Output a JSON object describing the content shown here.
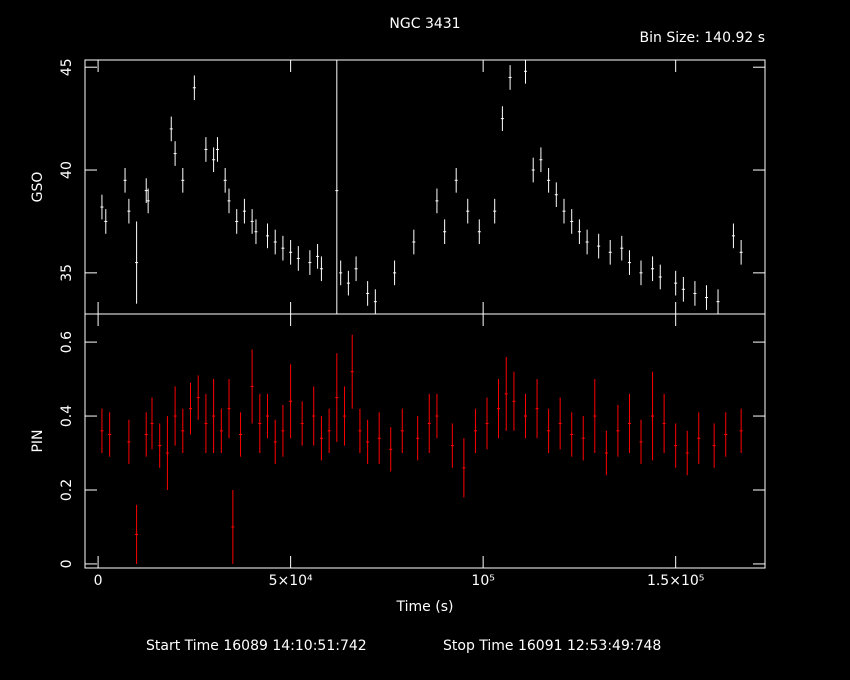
{
  "chart_data": [
    {
      "type": "scatter",
      "title": "NGC 3431",
      "subtitle": "Bin Size: 140.92 s",
      "ylabel": "GSO",
      "color": "#ffffff",
      "x": [
        1000,
        2000,
        7000,
        8000,
        10000,
        12500,
        13000,
        19000,
        20000,
        22000,
        25000,
        28000,
        30000,
        31000,
        33000,
        34000,
        36000,
        38000,
        40000,
        41000,
        44000,
        46000,
        48000,
        50000,
        52000,
        55000,
        57000,
        58000,
        62000,
        63000,
        65000,
        67000,
        70000,
        72000,
        77000,
        82000,
        88000,
        90000,
        93000,
        96000,
        99000,
        103000,
        105000,
        107000,
        111000,
        113000,
        115000,
        117000,
        119000,
        121000,
        123000,
        125000,
        127000,
        130000,
        133000,
        136000,
        138000,
        141000,
        144000,
        146000,
        150000,
        152000,
        155000,
        158000,
        161000,
        165000,
        167000
      ],
      "values": [
        38.2,
        37.5,
        39.5,
        38.0,
        35.5,
        39.0,
        38.5,
        42.0,
        40.8,
        39.5,
        44.0,
        41.0,
        40.5,
        41.0,
        39.5,
        38.5,
        37.5,
        38.0,
        37.5,
        37.0,
        36.8,
        36.5,
        36.2,
        36.0,
        35.7,
        35.5,
        35.8,
        35.2,
        39.0,
        35.0,
        34.5,
        35.2,
        34.0,
        33.6,
        35.0,
        36.5,
        38.5,
        37.0,
        39.5,
        38.0,
        37.0,
        38.0,
        42.5,
        44.5,
        44.8,
        40.0,
        40.5,
        39.5,
        38.8,
        38.0,
        37.5,
        37.0,
        36.5,
        36.3,
        36.0,
        36.2,
        35.5,
        35.0,
        35.2,
        34.8,
        34.5,
        34.2,
        34.0,
        33.8,
        33.6,
        36.8,
        36.0
      ],
      "errors": [
        0.6,
        0.6,
        0.6,
        0.6,
        2,
        0.6,
        0.6,
        0.6,
        0.6,
        0.6,
        0.6,
        0.6,
        0.6,
        0.6,
        0.6,
        0.6,
        0.6,
        0.6,
        0.6,
        0.6,
        0.6,
        0.6,
        0.6,
        0.6,
        0.6,
        0.6,
        0.6,
        0.6,
        7,
        0.6,
        0.6,
        0.6,
        0.6,
        0.6,
        0.6,
        0.6,
        0.6,
        0.6,
        0.6,
        0.6,
        0.6,
        0.6,
        0.6,
        0.6,
        0.6,
        0.6,
        0.6,
        0.6,
        0.6,
        0.6,
        0.6,
        0.6,
        0.6,
        0.6,
        0.6,
        0.6,
        0.6,
        0.6,
        0.6,
        0.6,
        0.6,
        0.6,
        0.6,
        0.6,
        0.6,
        0.6,
        0.6
      ],
      "xlim": [
        -3400,
        173200
      ],
      "xticks": [
        0,
        50000,
        100000,
        150000
      ],
      "ylim": [
        33,
        45.35
      ],
      "yticks": [
        35,
        40,
        45
      ]
    },
    {
      "type": "scatter",
      "ylabel": "PIN",
      "xlabel": "Time (s)",
      "color": "#ff0000",
      "footer": [
        "Start Time 16089 14:10:51:742",
        "Stop Time 16091 12:53:49:748"
      ],
      "x": [
        1000,
        3000,
        8000,
        10000,
        12500,
        14000,
        16000,
        18000,
        20000,
        22000,
        24000,
        26000,
        28000,
        30000,
        32000,
        34000,
        35000,
        37000,
        40000,
        42000,
        44000,
        46000,
        48000,
        50000,
        53000,
        56000,
        58000,
        60000,
        62000,
        64000,
        66000,
        68000,
        70000,
        73000,
        76000,
        79000,
        83000,
        86000,
        88000,
        92000,
        95000,
        98000,
        101000,
        104000,
        106000,
        108000,
        111000,
        114000,
        117000,
        120000,
        123000,
        126000,
        129000,
        132000,
        135000,
        138000,
        141000,
        144000,
        147000,
        150000,
        153000,
        156000,
        160000,
        163000,
        167000
      ],
      "values": [
        0.36,
        0.35,
        0.33,
        0.08,
        0.35,
        0.38,
        0.32,
        0.3,
        0.4,
        0.36,
        0.42,
        0.45,
        0.38,
        0.4,
        0.36,
        0.42,
        0.1,
        0.35,
        0.48,
        0.38,
        0.4,
        0.33,
        0.36,
        0.44,
        0.38,
        0.4,
        0.34,
        0.36,
        0.45,
        0.4,
        0.52,
        0.36,
        0.33,
        0.34,
        0.31,
        0.36,
        0.34,
        0.38,
        0.4,
        0.32,
        0.26,
        0.36,
        0.38,
        0.42,
        0.46,
        0.44,
        0.4,
        0.42,
        0.36,
        0.38,
        0.35,
        0.34,
        0.4,
        0.3,
        0.36,
        0.38,
        0.33,
        0.4,
        0.38,
        0.32,
        0.3,
        0.34,
        0.32,
        0.35,
        0.36
      ],
      "errors": [
        0.06,
        0.06,
        0.06,
        0.08,
        0.06,
        0.07,
        0.06,
        0.1,
        0.08,
        0.06,
        0.07,
        0.06,
        0.08,
        0.1,
        0.06,
        0.08,
        0.1,
        0.06,
        0.1,
        0.08,
        0.06,
        0.06,
        0.07,
        0.1,
        0.06,
        0.08,
        0.06,
        0.06,
        0.12,
        0.08,
        0.1,
        0.06,
        0.06,
        0.07,
        0.06,
        0.06,
        0.06,
        0.08,
        0.06,
        0.06,
        0.08,
        0.06,
        0.07,
        0.08,
        0.1,
        0.08,
        0.06,
        0.08,
        0.06,
        0.07,
        0.06,
        0.06,
        0.1,
        0.06,
        0.07,
        0.08,
        0.06,
        0.12,
        0.08,
        0.06,
        0.06,
        0.07,
        0.06,
        0.06,
        0.06
      ],
      "xlim": [
        -3400,
        173200
      ],
      "xticks": [
        {
          "value": 0,
          "label": "0"
        },
        {
          "value": 50000,
          "label": "5×10⁴"
        },
        {
          "value": 100000,
          "label": "10⁵"
        },
        {
          "value": 150000,
          "label": "1.5×10⁵"
        }
      ],
      "ylim": [
        -0.011,
        0.676
      ],
      "yticks": [
        0,
        0.2,
        0.4,
        0.6
      ]
    }
  ]
}
